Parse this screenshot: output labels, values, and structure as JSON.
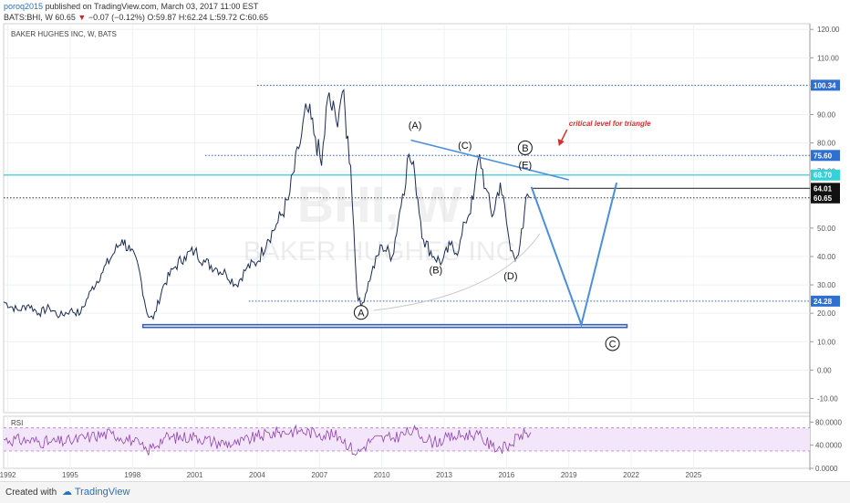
{
  "header": {
    "user": "poroq2015",
    "published": "published on TradingView.com, March 03, 2017 11:00 EST",
    "symbol_line": "BATS:BHI, W  60.65",
    "change": "−0.07 (−0.12%)",
    "ohlc": "O:59.87 H:62.24 L:59.72 C:60.65"
  },
  "footer": {
    "created": "Created with",
    "brand": "TradingView"
  },
  "colors": {
    "down": "#c1272d",
    "accent": "#4a8fd8",
    "cyan": "#34d1d8",
    "rsi": "#9b59b6"
  },
  "chart_data": {
    "type": "line",
    "title": "BAKER HUGHES INC, W, BATS",
    "watermark_symbol": "BHI, W",
    "watermark_name": "BAKER HUGHES INC",
    "ylim": [
      -15,
      122
    ],
    "yticks": [
      "120.00",
      "110.00",
      "100.00",
      "90.00",
      "80.00",
      "70.00",
      "60.00",
      "50.00",
      "40.00",
      "30.00",
      "20.00",
      "10.00",
      "0.00",
      "-10.00"
    ],
    "ytick_values": [
      120,
      110,
      100,
      90,
      80,
      70,
      60,
      50,
      40,
      30,
      20,
      10,
      0,
      -10
    ],
    "xlim": [
      1991.8,
      2030.6
    ],
    "xticks": [
      "1992",
      "1995",
      "1998",
      "2001",
      "2004",
      "2007",
      "2010",
      "2013",
      "2016",
      "2019",
      "2022",
      "2025"
    ],
    "xtick_values": [
      1992,
      1995,
      1998,
      2001,
      2004,
      2007,
      2010,
      2013,
      2016,
      2019,
      2022,
      2025
    ],
    "price_series": {
      "name": "BHI",
      "x": [
        1991.8,
        1992.5,
        1993.0,
        1993.5,
        1994.0,
        1994.5,
        1995.0,
        1995.5,
        1996.0,
        1996.5,
        1997.0,
        1997.5,
        1997.9,
        1998.3,
        1998.7,
        1999.0,
        1999.5,
        2000.0,
        2000.5,
        2001.0,
        2001.5,
        2002.0,
        2002.5,
        2003.0,
        2003.5,
        2004.0,
        2004.5,
        2005.0,
        2005.5,
        2006.0,
        2006.4,
        2006.8,
        2007.1,
        2007.4,
        2007.8,
        2008.1,
        2008.5,
        2008.8,
        2009.0,
        2009.5,
        2010.0,
        2010.5,
        2011.0,
        2011.3,
        2011.6,
        2012.0,
        2012.5,
        2012.9,
        2013.3,
        2013.7,
        2014.0,
        2014.4,
        2014.7,
        2015.0,
        2015.3,
        2015.7,
        2016.0,
        2016.2,
        2016.5,
        2016.8,
        2017.0,
        2017.17
      ],
      "y": [
        24,
        21,
        23,
        20,
        22,
        19,
        21,
        20,
        28,
        34,
        40,
        46,
        42,
        36,
        20,
        18,
        30,
        36,
        40,
        42,
        38,
        36,
        34,
        30,
        36,
        38,
        46,
        52,
        60,
        78,
        92,
        82,
        72,
        96,
        88,
        98,
        72,
        28,
        22,
        34,
        44,
        40,
        62,
        76,
        68,
        46,
        40,
        38,
        44,
        42,
        52,
        60,
        76,
        64,
        54,
        66,
        52,
        42,
        40,
        50,
        62,
        60.65
      ]
    },
    "levels": [
      {
        "name": "100.34",
        "value": 100.34,
        "color": "#2a5fb4",
        "style": "dotted"
      },
      {
        "name": "75.60",
        "value": 75.6,
        "color": "#2a5fb4",
        "style": "dotted"
      },
      {
        "name": "68.70",
        "value": 68.7,
        "color": "#34d1d8",
        "style": "solid"
      },
      {
        "name": "64.01",
        "value": 64.01,
        "color": "#333333",
        "style": "solid"
      },
      {
        "name": "60.65",
        "value": 60.65,
        "color": "#333333",
        "style": "dotted"
      },
      {
        "name": "24.28",
        "value": 24.28,
        "color": "#2a5fb4",
        "style": "dotted"
      }
    ],
    "support_zone": {
      "from_x": 1998.5,
      "to_x": 2021.8,
      "y_low": 15.0,
      "y_high": 16.0
    },
    "triangle_line": {
      "x": [
        2011.4,
        2019.0
      ],
      "y": [
        81.0,
        67.0
      ]
    },
    "projection": {
      "x": [
        2017.2,
        2019.6,
        2021.3
      ],
      "y": [
        64.5,
        16.0,
        66.0
      ]
    },
    "wave_labels": [
      {
        "text": "(A)",
        "x": 2011.6,
        "y": 85
      },
      {
        "text": "(C)",
        "x": 2014.0,
        "y": 78
      },
      {
        "text": "(B)",
        "x": 2012.6,
        "y": 34
      },
      {
        "text": "(D)",
        "x": 2016.2,
        "y": 32
      },
      {
        "text": "B",
        "x": 2016.9,
        "y": 77,
        "circled": true
      },
      {
        "text": "(E)",
        "x": 2016.9,
        "y": 71
      },
      {
        "text": "A",
        "x": 2009.0,
        "y": 19,
        "circled": true
      },
      {
        "text": "C",
        "x": 2021.1,
        "y": 8,
        "circled": true
      }
    ],
    "annotation": {
      "text": "critical level for triangle",
      "x": 2019.0,
      "y": 86,
      "color": "#d32f2f"
    },
    "rsi": {
      "label": "RSI",
      "ylim": [
        0,
        90
      ],
      "yticks": [
        "80.0000",
        "40.0000",
        "0.0000"
      ],
      "ytick_values": [
        80,
        40,
        0
      ],
      "band": [
        30,
        70
      ],
      "x": [
        1991.8,
        1993,
        1994,
        1995,
        1996,
        1997,
        1998,
        1998.7,
        1999.5,
        2001,
        2002,
        2003,
        2004,
        2005,
        2006,
        2007,
        2008,
        2008.8,
        2009.5,
        2010.5,
        2011.5,
        2012.5,
        2013.5,
        2014.5,
        2015.3,
        2016,
        2016.7,
        2017.17
      ],
      "y": [
        50,
        48,
        45,
        47,
        55,
        60,
        48,
        30,
        52,
        55,
        45,
        42,
        55,
        62,
        65,
        60,
        55,
        25,
        50,
        52,
        65,
        45,
        55,
        60,
        38,
        35,
        58,
        62
      ]
    }
  }
}
